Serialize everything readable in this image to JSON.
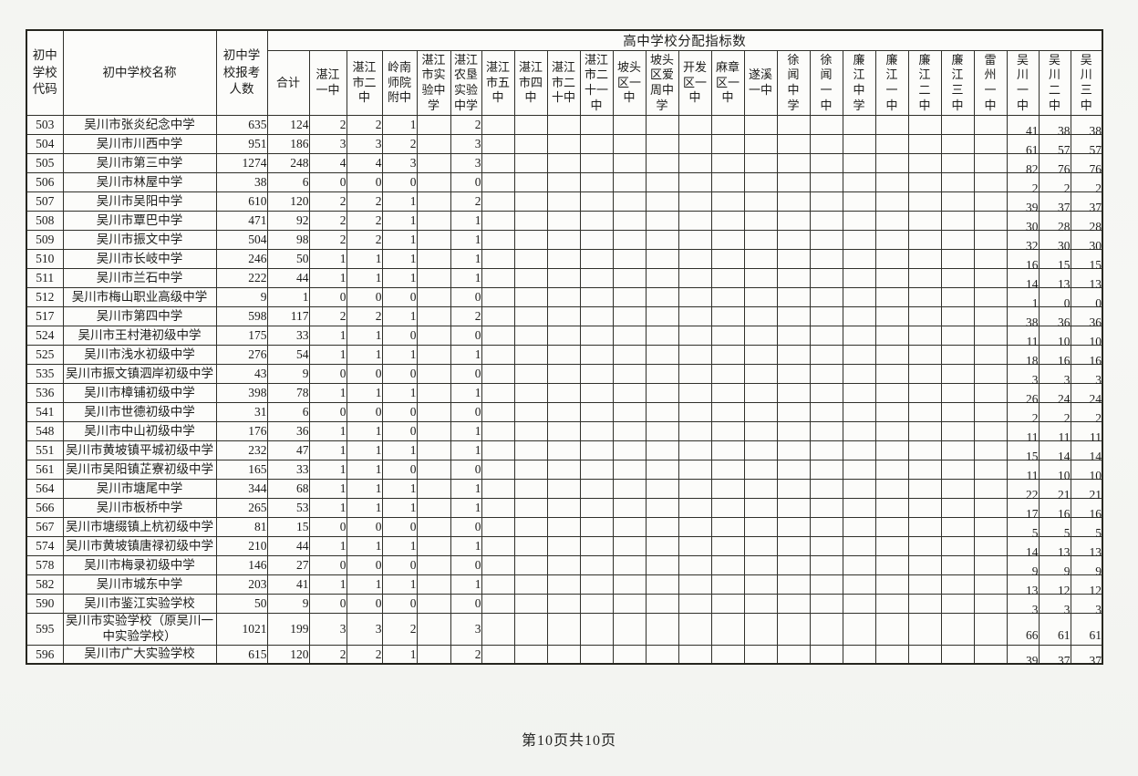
{
  "document": {
    "footer_page_label": "第10页共10页"
  },
  "table": {
    "header": {
      "code_label": "初中\n学校\n代码",
      "name_label": "初中学校名称",
      "applicants_label": "初中学\n校报考\n人数",
      "group_label": "高中学校分配指标数",
      "quota_columns": [
        "合计",
        "湛江\n一中",
        "湛江\n市二\n中",
        "岭南\n师院\n附中",
        "湛江\n市实\n验中\n学",
        "湛江\n农垦\n实验\n中学",
        "湛江\n市五\n中",
        "湛江\n市四\n中",
        "湛江\n市二\n十中",
        "湛江\n市二\n十一\n中",
        "坡头\n区一\n中",
        "坡头\n区爱\n周中\n学",
        "开发\n区一\n中",
        "麻章\n区一\n中",
        "遂溪\n一中",
        "徐\n闻\n中\n学",
        "徐\n闻\n一\n中",
        "廉\n江\n中\n学",
        "廉\n江\n一\n中",
        "廉\n江\n二\n中",
        "廉\n江\n三\n中",
        "雷\n州\n一\n中",
        "吴\n川\n一\n中",
        "吴\n川\n二\n中",
        "吴\n川\n三\n中"
      ]
    },
    "rows": [
      {
        "code": "503",
        "name": "吴川市张炎纪念中学",
        "applicants": "635",
        "values": [
          "124",
          "2",
          "2",
          "1",
          "",
          "2",
          "",
          "",
          "",
          "",
          "",
          "",
          "",
          "",
          "",
          "",
          "",
          "",
          "",
          "",
          "",
          "",
          "41",
          "38",
          "38"
        ]
      },
      {
        "code": "504",
        "name": "吴川市川西中学",
        "applicants": "951",
        "values": [
          "186",
          "3",
          "3",
          "2",
          "",
          "3",
          "",
          "",
          "",
          "",
          "",
          "",
          "",
          "",
          "",
          "",
          "",
          "",
          "",
          "",
          "",
          "",
          "61",
          "57",
          "57"
        ]
      },
      {
        "code": "505",
        "name": "吴川市第三中学",
        "applicants": "1274",
        "values": [
          "248",
          "4",
          "4",
          "3",
          "",
          "3",
          "",
          "",
          "",
          "",
          "",
          "",
          "",
          "",
          "",
          "",
          "",
          "",
          "",
          "",
          "",
          "",
          "82",
          "76",
          "76"
        ]
      },
      {
        "code": "506",
        "name": "吴川市林屋中学",
        "applicants": "38",
        "values": [
          "6",
          "0",
          "0",
          "0",
          "",
          "0",
          "",
          "",
          "",
          "",
          "",
          "",
          "",
          "",
          "",
          "",
          "",
          "",
          "",
          "",
          "",
          "",
          "2",
          "2",
          "2"
        ]
      },
      {
        "code": "507",
        "name": "吴川市吴阳中学",
        "applicants": "610",
        "values": [
          "120",
          "2",
          "2",
          "1",
          "",
          "2",
          "",
          "",
          "",
          "",
          "",
          "",
          "",
          "",
          "",
          "",
          "",
          "",
          "",
          "",
          "",
          "",
          "39",
          "37",
          "37"
        ]
      },
      {
        "code": "508",
        "name": "吴川市覃巴中学",
        "applicants": "471",
        "values": [
          "92",
          "2",
          "2",
          "1",
          "",
          "1",
          "",
          "",
          "",
          "",
          "",
          "",
          "",
          "",
          "",
          "",
          "",
          "",
          "",
          "",
          "",
          "",
          "30",
          "28",
          "28"
        ]
      },
      {
        "code": "509",
        "name": "吴川市振文中学",
        "applicants": "504",
        "values": [
          "98",
          "2",
          "2",
          "1",
          "",
          "1",
          "",
          "",
          "",
          "",
          "",
          "",
          "",
          "",
          "",
          "",
          "",
          "",
          "",
          "",
          "",
          "",
          "32",
          "30",
          "30"
        ]
      },
      {
        "code": "510",
        "name": "吴川市长岐中学",
        "applicants": "246",
        "values": [
          "50",
          "1",
          "1",
          "1",
          "",
          "1",
          "",
          "",
          "",
          "",
          "",
          "",
          "",
          "",
          "",
          "",
          "",
          "",
          "",
          "",
          "",
          "",
          "16",
          "15",
          "15"
        ]
      },
      {
        "code": "511",
        "name": "吴川市兰石中学",
        "applicants": "222",
        "values": [
          "44",
          "1",
          "1",
          "1",
          "",
          "1",
          "",
          "",
          "",
          "",
          "",
          "",
          "",
          "",
          "",
          "",
          "",
          "",
          "",
          "",
          "",
          "",
          "14",
          "13",
          "13"
        ]
      },
      {
        "code": "512",
        "name": "吴川市梅山职业高级中学",
        "applicants": "9",
        "values": [
          "1",
          "0",
          "0",
          "0",
          "",
          "0",
          "",
          "",
          "",
          "",
          "",
          "",
          "",
          "",
          "",
          "",
          "",
          "",
          "",
          "",
          "",
          "",
          "1",
          "0",
          "0"
        ]
      },
      {
        "code": "517",
        "name": "吴川市第四中学",
        "applicants": "598",
        "values": [
          "117",
          "2",
          "2",
          "1",
          "",
          "2",
          "",
          "",
          "",
          "",
          "",
          "",
          "",
          "",
          "",
          "",
          "",
          "",
          "",
          "",
          "",
          "",
          "38",
          "36",
          "36"
        ]
      },
      {
        "code": "524",
        "name": "吴川市王村港初级中学",
        "applicants": "175",
        "values": [
          "33",
          "1",
          "1",
          "0",
          "",
          "0",
          "",
          "",
          "",
          "",
          "",
          "",
          "",
          "",
          "",
          "",
          "",
          "",
          "",
          "",
          "",
          "",
          "11",
          "10",
          "10"
        ]
      },
      {
        "code": "525",
        "name": "吴川市浅水初级中学",
        "applicants": "276",
        "values": [
          "54",
          "1",
          "1",
          "1",
          "",
          "1",
          "",
          "",
          "",
          "",
          "",
          "",
          "",
          "",
          "",
          "",
          "",
          "",
          "",
          "",
          "",
          "",
          "18",
          "16",
          "16"
        ]
      },
      {
        "code": "535",
        "name": "吴川市振文镇泗岸初级中学",
        "applicants": "43",
        "values": [
          "9",
          "0",
          "0",
          "0",
          "",
          "0",
          "",
          "",
          "",
          "",
          "",
          "",
          "",
          "",
          "",
          "",
          "",
          "",
          "",
          "",
          "",
          "",
          "3",
          "3",
          "3"
        ]
      },
      {
        "code": "536",
        "name": "吴川市樟铺初级中学",
        "applicants": "398",
        "values": [
          "78",
          "1",
          "1",
          "1",
          "",
          "1",
          "",
          "",
          "",
          "",
          "",
          "",
          "",
          "",
          "",
          "",
          "",
          "",
          "",
          "",
          "",
          "",
          "26",
          "24",
          "24"
        ]
      },
      {
        "code": "541",
        "name": "吴川市世德初级中学",
        "applicants": "31",
        "values": [
          "6",
          "0",
          "0",
          "0",
          "",
          "0",
          "",
          "",
          "",
          "",
          "",
          "",
          "",
          "",
          "",
          "",
          "",
          "",
          "",
          "",
          "",
          "",
          "2",
          "2",
          "2"
        ]
      },
      {
        "code": "548",
        "name": "吴川市中山初级中学",
        "applicants": "176",
        "values": [
          "36",
          "1",
          "1",
          "0",
          "",
          "1",
          "",
          "",
          "",
          "",
          "",
          "",
          "",
          "",
          "",
          "",
          "",
          "",
          "",
          "",
          "",
          "",
          "11",
          "11",
          "11"
        ]
      },
      {
        "code": "551",
        "name": "吴川市黄坡镇平城初级中学",
        "applicants": "232",
        "values": [
          "47",
          "1",
          "1",
          "1",
          "",
          "1",
          "",
          "",
          "",
          "",
          "",
          "",
          "",
          "",
          "",
          "",
          "",
          "",
          "",
          "",
          "",
          "",
          "15",
          "14",
          "14"
        ]
      },
      {
        "code": "561",
        "name": "吴川市吴阳镇芷寮初级中学",
        "applicants": "165",
        "values": [
          "33",
          "1",
          "1",
          "0",
          "",
          "0",
          "",
          "",
          "",
          "",
          "",
          "",
          "",
          "",
          "",
          "",
          "",
          "",
          "",
          "",
          "",
          "",
          "11",
          "10",
          "10"
        ]
      },
      {
        "code": "564",
        "name": "吴川市塘尾中学",
        "applicants": "344",
        "values": [
          "68",
          "1",
          "1",
          "1",
          "",
          "1",
          "",
          "",
          "",
          "",
          "",
          "",
          "",
          "",
          "",
          "",
          "",
          "",
          "",
          "",
          "",
          "",
          "22",
          "21",
          "21"
        ]
      },
      {
        "code": "566",
        "name": "吴川市板桥中学",
        "applicants": "265",
        "values": [
          "53",
          "1",
          "1",
          "1",
          "",
          "1",
          "",
          "",
          "",
          "",
          "",
          "",
          "",
          "",
          "",
          "",
          "",
          "",
          "",
          "",
          "",
          "",
          "17",
          "16",
          "16"
        ]
      },
      {
        "code": "567",
        "name": "吴川市塘缀镇上杭初级中学",
        "applicants": "81",
        "values": [
          "15",
          "0",
          "0",
          "0",
          "",
          "0",
          "",
          "",
          "",
          "",
          "",
          "",
          "",
          "",
          "",
          "",
          "",
          "",
          "",
          "",
          "",
          "",
          "5",
          "5",
          "5"
        ]
      },
      {
        "code": "574",
        "name": "吴川市黄坡镇唐禄初级中学",
        "applicants": "210",
        "values": [
          "44",
          "1",
          "1",
          "1",
          "",
          "1",
          "",
          "",
          "",
          "",
          "",
          "",
          "",
          "",
          "",
          "",
          "",
          "",
          "",
          "",
          "",
          "",
          "14",
          "13",
          "13"
        ]
      },
      {
        "code": "578",
        "name": "吴川市梅录初级中学",
        "applicants": "146",
        "values": [
          "27",
          "0",
          "0",
          "0",
          "",
          "0",
          "",
          "",
          "",
          "",
          "",
          "",
          "",
          "",
          "",
          "",
          "",
          "",
          "",
          "",
          "",
          "",
          "9",
          "9",
          "9"
        ]
      },
      {
        "code": "582",
        "name": "吴川市城东中学",
        "applicants": "203",
        "values": [
          "41",
          "1",
          "1",
          "1",
          "",
          "1",
          "",
          "",
          "",
          "",
          "",
          "",
          "",
          "",
          "",
          "",
          "",
          "",
          "",
          "",
          "",
          "",
          "13",
          "12",
          "12"
        ]
      },
      {
        "code": "590",
        "name": "吴川市鉴江实验学校",
        "applicants": "50",
        "values": [
          "9",
          "0",
          "0",
          "0",
          "",
          "0",
          "",
          "",
          "",
          "",
          "",
          "",
          "",
          "",
          "",
          "",
          "",
          "",
          "",
          "",
          "",
          "",
          "3",
          "3",
          "3"
        ]
      },
      {
        "code": "595",
        "name": "吴川市实验学校（原吴川一中实验学校）",
        "applicants": "1021",
        "values": [
          "199",
          "3",
          "3",
          "2",
          "",
          "3",
          "",
          "",
          "",
          "",
          "",
          "",
          "",
          "",
          "",
          "",
          "",
          "",
          "",
          "",
          "",
          "",
          "66",
          "61",
          "61"
        ]
      },
      {
        "code": "596",
        "name": "吴川市广大实验学校",
        "applicants": "615",
        "values": [
          "120",
          "2",
          "2",
          "1",
          "",
          "2",
          "",
          "",
          "",
          "",
          "",
          "",
          "",
          "",
          "",
          "",
          "",
          "",
          "",
          "",
          "",
          "",
          "39",
          "37",
          "37"
        ]
      }
    ]
  },
  "colors": {
    "page_bg": "#f4f5f2",
    "cell_bg": "#fcfcfa",
    "border": "#30302a",
    "text": "#1c1c1a"
  }
}
